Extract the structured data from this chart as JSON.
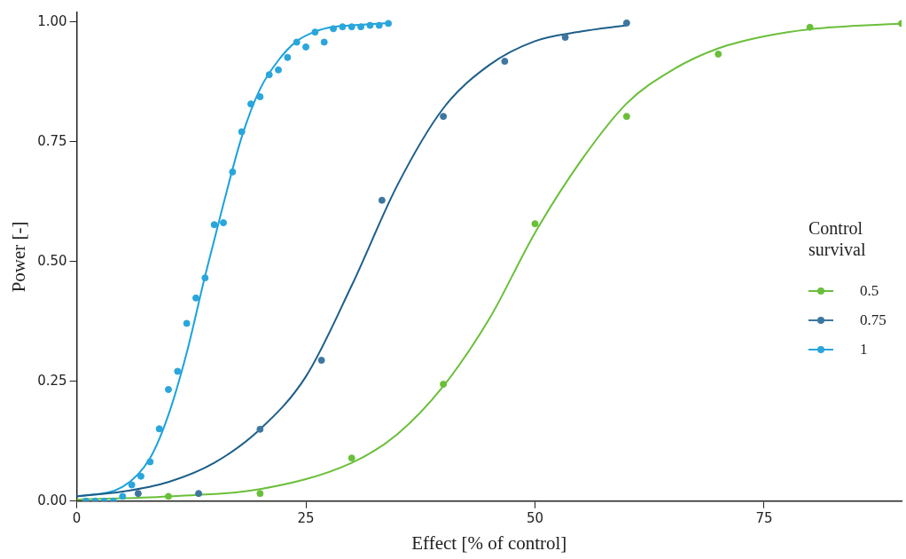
{
  "chart_data": {
    "type": "scatter",
    "xlabel": "Effect [% of control]",
    "ylabel": "Power [-]",
    "legend_title": "Control survival",
    "legend": "right",
    "marker": "circle",
    "grid": false,
    "xlim": [
      0,
      90
    ],
    "xticks": [
      0,
      25,
      50,
      75
    ],
    "ylim": [
      0,
      1.02
    ],
    "yticks": [
      {
        "value": 0,
        "label": "0.00"
      },
      {
        "value": 0.25,
        "label": "0.25"
      },
      {
        "value": 0.5,
        "label": "0.50"
      },
      {
        "value": 0.75,
        "label": "0.75"
      },
      {
        "value": 1,
        "label": "1.00"
      }
    ],
    "series": [
      {
        "name": "0.5",
        "color": "#6abf3a",
        "x": [
          10,
          20,
          30,
          40,
          50,
          60,
          70,
          80,
          90
        ],
        "values": [
          0.01,
          0.016,
          0.09,
          0.244,
          0.579,
          0.803,
          0.933,
          0.989,
          0.997
        ]
      },
      {
        "name": "0.75",
        "color": "#3d77a0",
        "x": [
          6.7,
          13.3,
          20,
          26.7,
          33.3,
          40,
          46.7,
          53.3,
          60
        ],
        "values": [
          0.016,
          0.016,
          0.15,
          0.294,
          0.628,
          0.803,
          0.918,
          0.968,
          0.998
        ]
      },
      {
        "name": "1",
        "color": "#2aa6dc",
        "x": [
          1,
          2,
          3,
          4,
          5,
          6,
          7,
          8,
          9,
          10,
          11,
          12,
          13,
          14,
          15,
          16,
          17,
          18,
          19,
          20,
          21,
          22,
          23,
          24,
          25,
          26,
          27,
          28,
          29,
          30,
          31,
          32,
          33,
          34
        ],
        "values": [
          0,
          0,
          0,
          0,
          0.01,
          0.034,
          0.052,
          0.082,
          0.151,
          0.233,
          0.271,
          0.371,
          0.424,
          0.466,
          0.577,
          0.581,
          0.687,
          0.771,
          0.829,
          0.844,
          0.89,
          0.9,
          0.926,
          0.958,
          0.948,
          0.979,
          0.958,
          0.986,
          0.99,
          0.99,
          0.99,
          0.993,
          0.993,
          0.997
        ]
      },
      {
        "type": "line",
        "marker": "none",
        "color": "#6abf3a",
        "x": [
          0,
          10,
          20,
          30,
          35,
          40,
          45,
          50,
          55,
          60,
          65,
          70,
          75,
          80,
          90
        ],
        "values": [
          0.003,
          0.01,
          0.025,
          0.08,
          0.14,
          0.24,
          0.38,
          0.56,
          0.71,
          0.83,
          0.9,
          0.945,
          0.97,
          0.985,
          0.997
        ]
      },
      {
        "type": "line",
        "marker": "none",
        "color": "#1d5f8a",
        "x": [
          0,
          5,
          10,
          15,
          20,
          25,
          30,
          35,
          40,
          45,
          50,
          55,
          60
        ],
        "values": [
          0.01,
          0.02,
          0.04,
          0.08,
          0.15,
          0.26,
          0.45,
          0.66,
          0.82,
          0.91,
          0.96,
          0.98,
          0.993
        ]
      },
      {
        "type": "line",
        "marker": "none",
        "color": "#1aa2dc",
        "x": [
          0,
          5,
          8,
          10,
          12,
          14,
          16,
          18,
          20,
          22,
          24,
          26,
          28,
          30,
          34
        ],
        "values": [
          0.01,
          0.03,
          0.09,
          0.18,
          0.31,
          0.47,
          0.62,
          0.76,
          0.86,
          0.92,
          0.96,
          0.98,
          0.99,
          0.993,
          0.998
        ]
      }
    ]
  }
}
